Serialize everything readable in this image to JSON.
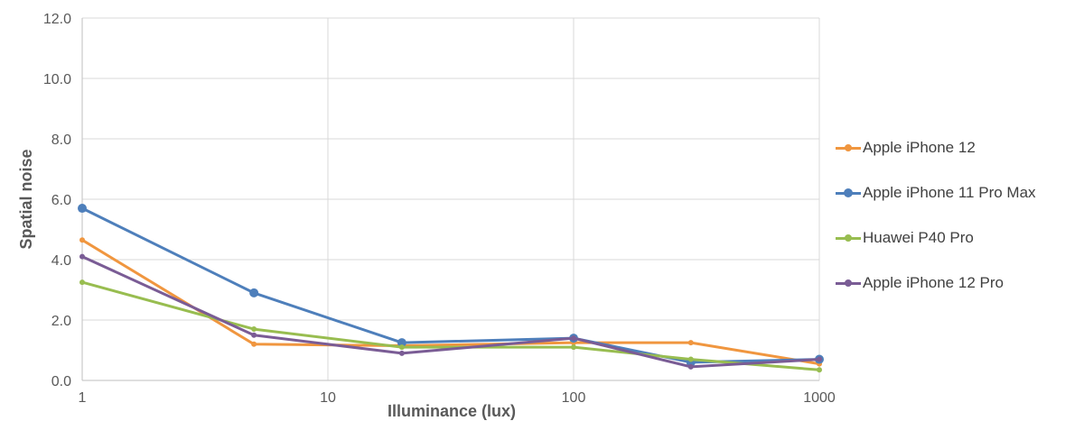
{
  "chart_data": {
    "type": "line",
    "title": "",
    "xlabel": "Illuminance (lux)",
    "ylabel": "Spatial noise",
    "xscale": "log",
    "xlim": [
      1,
      1000
    ],
    "ylim": [
      0,
      12
    ],
    "x_ticks": [
      "1",
      "10",
      "100",
      "1000"
    ],
    "y_ticks": [
      "0.0",
      "2.0",
      "4.0",
      "6.0",
      "8.0",
      "10.0",
      "12.0"
    ],
    "grid": true,
    "legend_position": "right",
    "series": [
      {
        "name": "Apple iPhone 12",
        "color": "#F0963F",
        "marker": "small",
        "x": [
          1,
          5,
          20,
          100,
          300,
          1000
        ],
        "y": [
          4.65,
          1.2,
          1.15,
          1.25,
          1.25,
          0.55
        ]
      },
      {
        "name": "Apple iPhone 11 Pro Max",
        "color": "#4E7FBB",
        "marker": "large",
        "x": [
          1,
          5,
          20,
          100,
          300,
          1000
        ],
        "y": [
          5.7,
          2.9,
          1.25,
          1.4,
          0.6,
          0.7
        ]
      },
      {
        "name": "Huawei P40 Pro",
        "color": "#98BD50",
        "marker": "small",
        "x": [
          1,
          5,
          20,
          100,
          300,
          1000
        ],
        "y": [
          3.25,
          1.7,
          1.1,
          1.1,
          0.7,
          0.35
        ]
      },
      {
        "name": "Apple iPhone 12 Pro",
        "color": "#7A5C95",
        "marker": "small",
        "x": [
          1,
          5,
          20,
          100,
          300,
          1000
        ],
        "y": [
          4.1,
          1.5,
          0.9,
          1.4,
          0.45,
          0.7
        ]
      }
    ]
  }
}
